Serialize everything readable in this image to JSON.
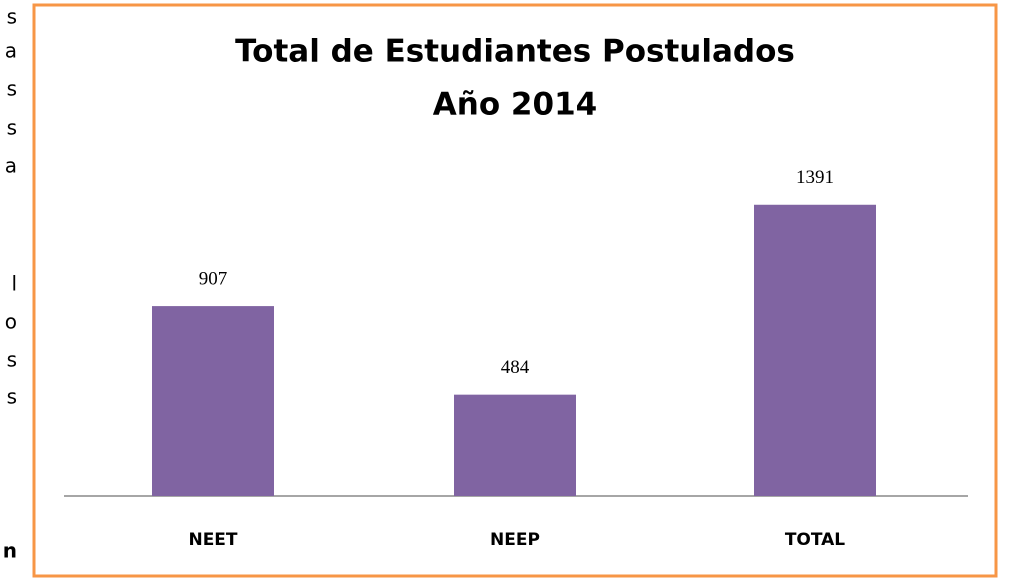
{
  "margin_text": [
    "s",
    "a",
    "s",
    "s",
    "a",
    "l",
    "o",
    "s",
    "s",
    "n"
  ],
  "chart_data": {
    "type": "bar",
    "title": "Total de Estudiantes Postulados",
    "subtitle": "Año 2014",
    "categories": [
      "NEET",
      "NEEP",
      "TOTAL"
    ],
    "values": [
      907,
      484,
      1391
    ],
    "color": "#8064a2",
    "ylim": [
      0,
      1600
    ],
    "grid": false
  }
}
